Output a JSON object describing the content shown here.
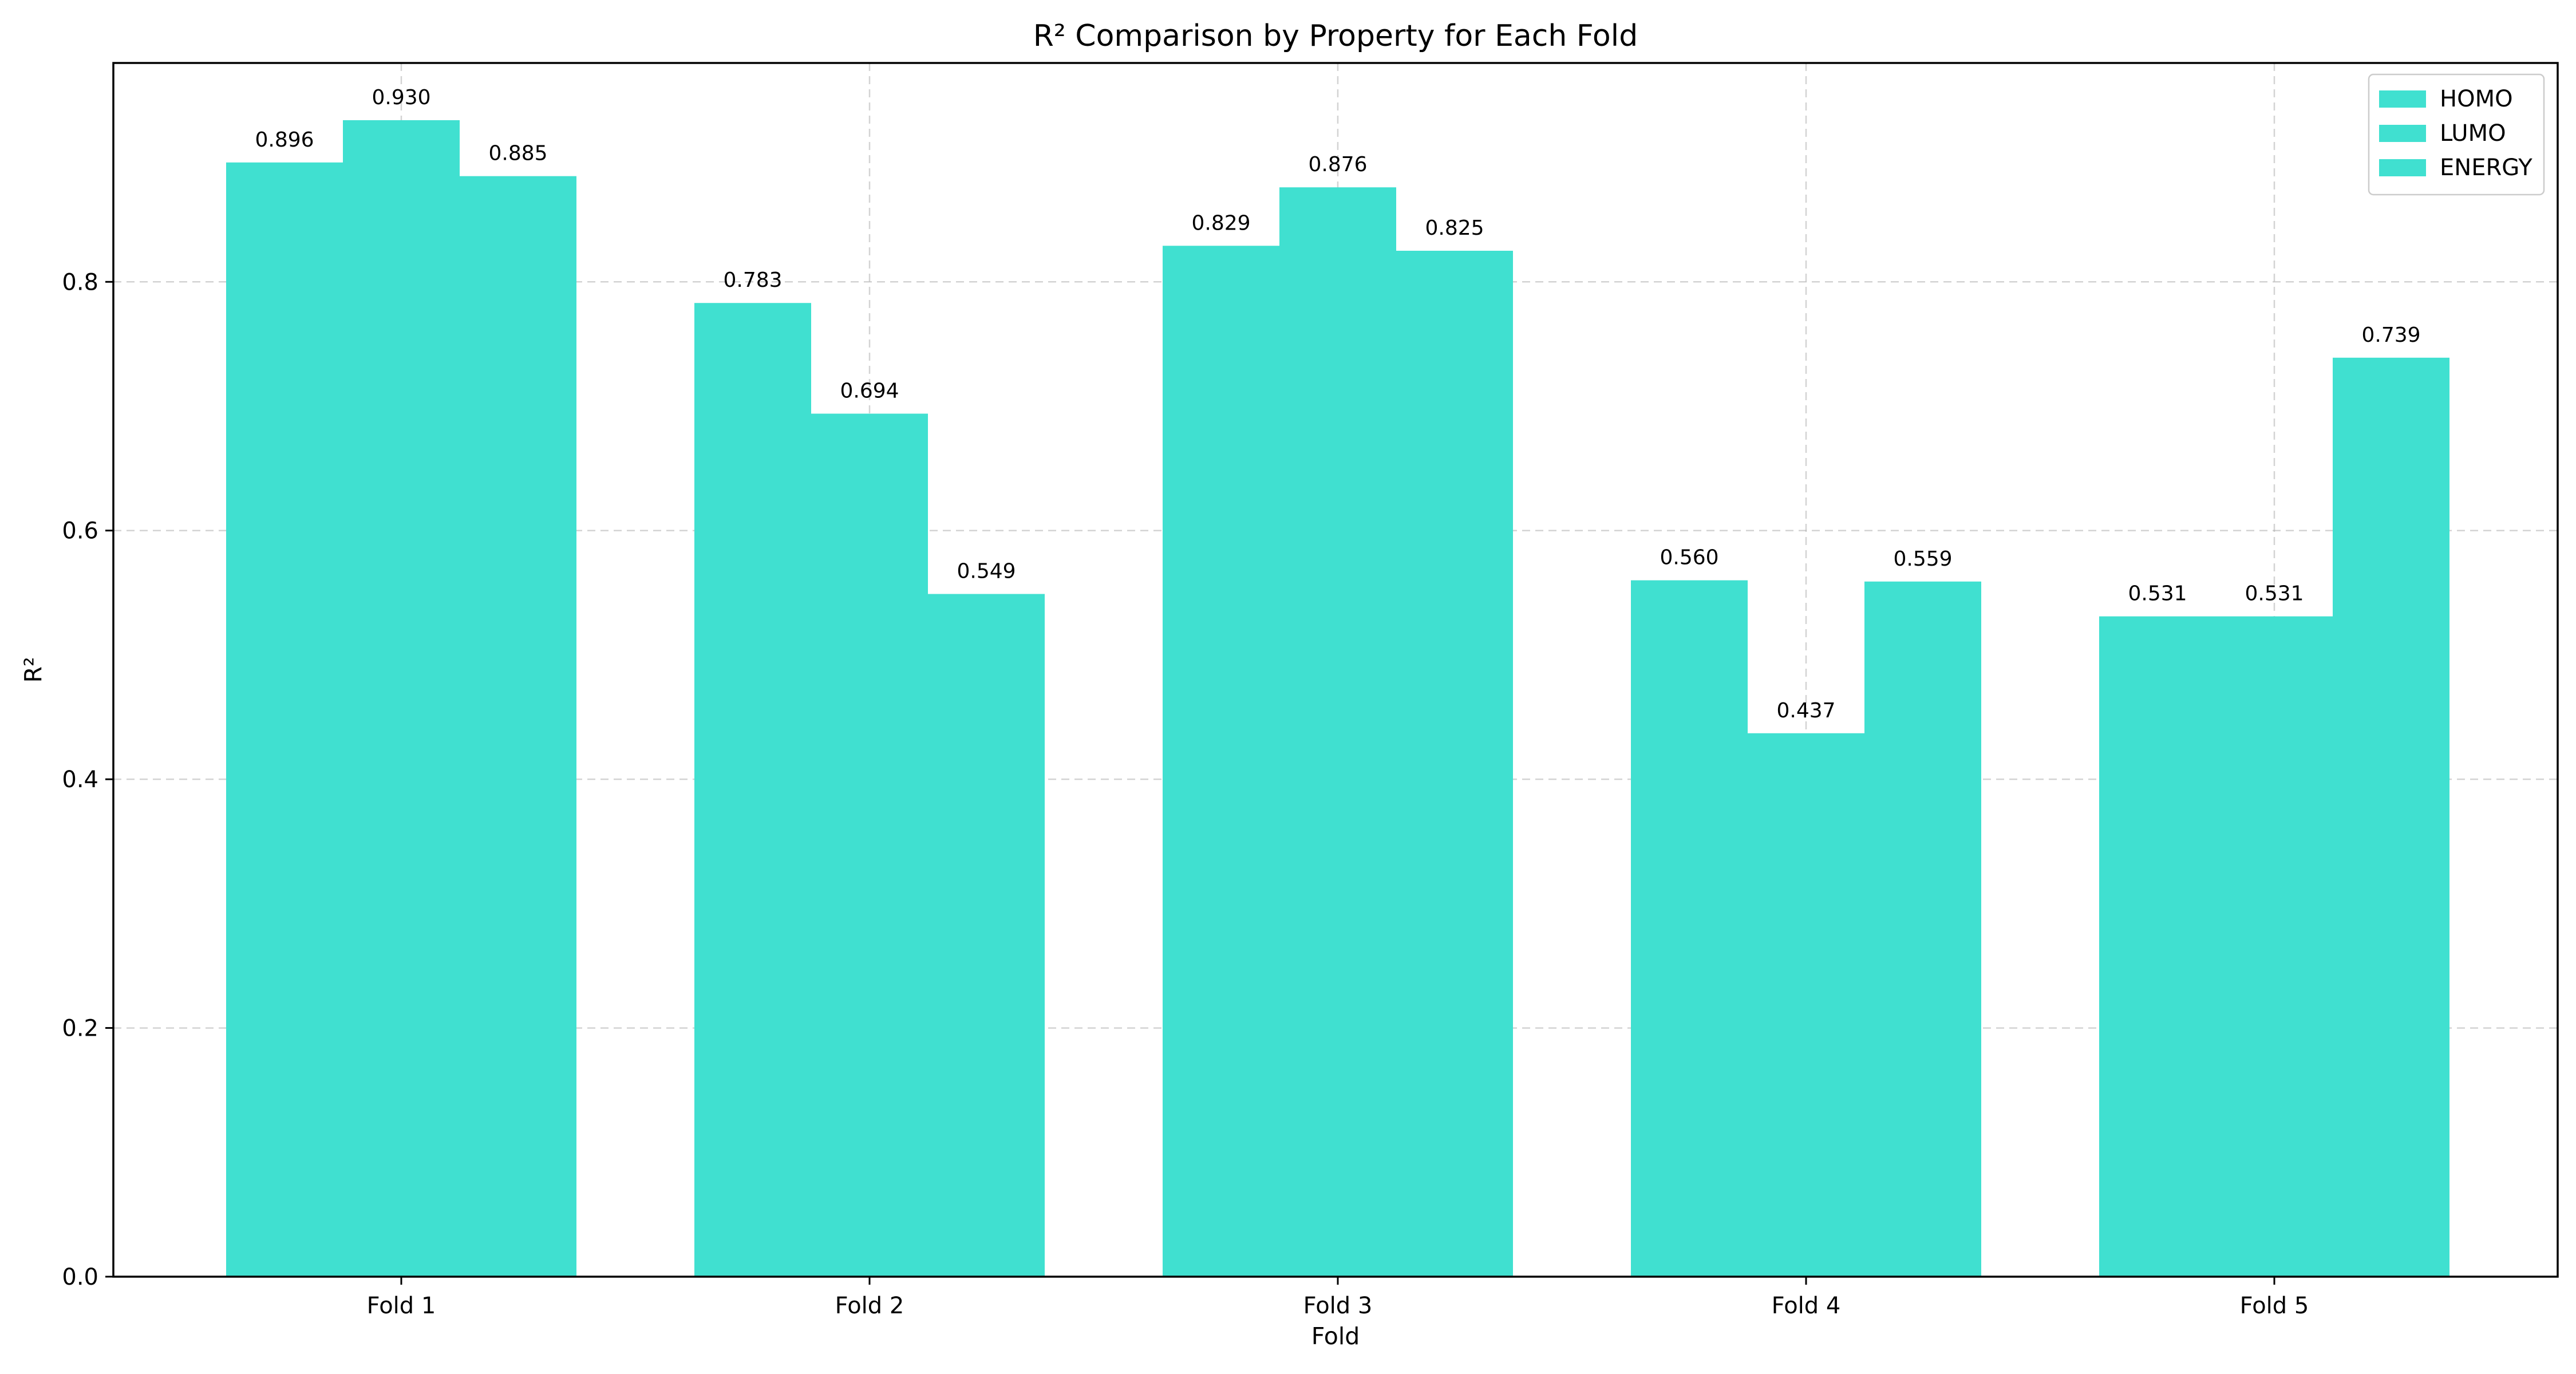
{
  "chart_data": {
    "type": "bar",
    "title": "R² Comparison by Property for Each Fold",
    "xlabel": "Fold",
    "ylabel": "R²",
    "categories": [
      "Fold 1",
      "Fold 2",
      "Fold 3",
      "Fold 4",
      "Fold 5"
    ],
    "series": [
      {
        "name": "HOMO",
        "color": "#40e0d0",
        "values": [
          0.896,
          0.783,
          0.829,
          0.56,
          0.531
        ]
      },
      {
        "name": "LUMO",
        "color": "#40e0d0",
        "values": [
          0.93,
          0.694,
          0.876,
          0.437,
          0.531
        ]
      },
      {
        "name": "ENERGY",
        "color": "#40e0d0",
        "values": [
          0.885,
          0.549,
          0.825,
          0.559,
          0.739
        ]
      }
    ],
    "data_labels": [
      [
        "0.896",
        "0.783",
        "0.829",
        "0.560",
        "0.531"
      ],
      [
        "0.930",
        "0.694",
        "0.876",
        "0.437",
        "0.531"
      ],
      [
        "0.885",
        "0.549",
        "0.825",
        "0.559",
        "0.739"
      ]
    ],
    "ylim": [
      0,
      0.976
    ],
    "yticks": [
      0.0,
      0.2,
      0.4,
      0.6,
      0.8
    ],
    "ytick_labels": [
      "0.0",
      "0.2",
      "0.4",
      "0.6",
      "0.8"
    ],
    "grid": true,
    "legend_position": "top-right"
  }
}
